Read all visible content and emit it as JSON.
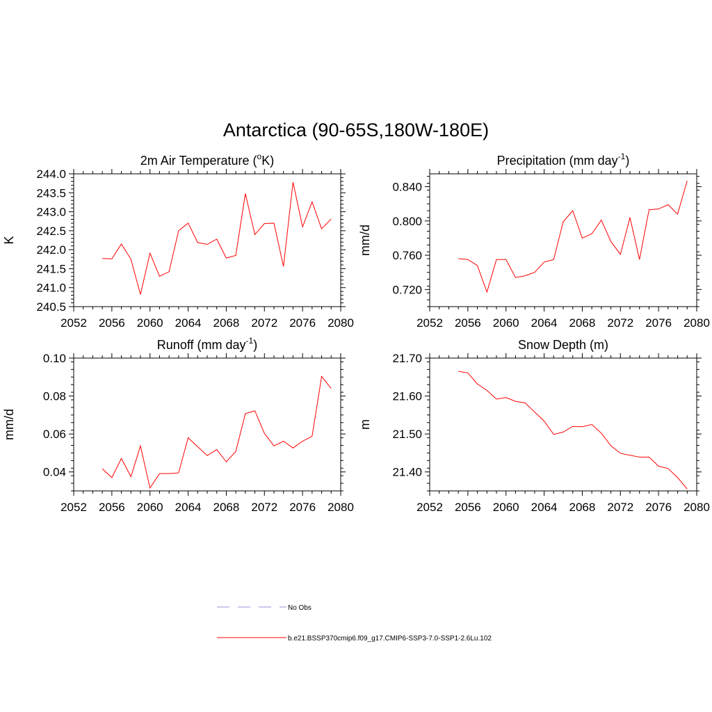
{
  "page_title": "Antarctica (90-65S,180W-180E)",
  "colors": {
    "model_line": "#ff0000",
    "obs_line": "#b8b8e8",
    "axis": "#000000"
  },
  "legend": {
    "obs_label": "No Obs",
    "model_label": "b.e21.BSSP370cmip6.f09_g17.CMIP6-SSP3-7.0-SSP1-2.6Lu.102"
  },
  "chart_data": [
    {
      "type": "line",
      "title": "2m Air Temperature (oK)",
      "title_pre": "2m Air Temperature (",
      "title_sup": "o",
      "title_post": "K)",
      "ylabel": "K",
      "xlim": [
        2052,
        2080
      ],
      "ylim": [
        240.5,
        244.0
      ],
      "x_ticks": [
        2052,
        2056,
        2060,
        2064,
        2068,
        2072,
        2076,
        2080
      ],
      "x_tick_labels": [
        "2052",
        "2056",
        "2060",
        "2064",
        "2068",
        "2072",
        "2076",
        "2080"
      ],
      "y_ticks": [
        240.5,
        241.0,
        241.5,
        242.0,
        242.5,
        243.0,
        243.5,
        244.0
      ],
      "y_tick_labels": [
        "240.5",
        "241.0",
        "241.5",
        "242.0",
        "242.5",
        "243.0",
        "243.5",
        "244.0"
      ],
      "y_minor_step": 0.1,
      "x": [
        2055,
        2056,
        2057,
        2058,
        2059,
        2060,
        2061,
        2062,
        2063,
        2064,
        2065,
        2066,
        2067,
        2068,
        2069,
        2070,
        2071,
        2072,
        2073,
        2074,
        2075,
        2076,
        2077,
        2078,
        2079
      ],
      "series": [
        {
          "values": [
            241.77,
            241.76,
            242.15,
            241.75,
            240.82,
            241.91,
            241.3,
            241.42,
            242.5,
            242.7,
            242.19,
            242.14,
            242.28,
            241.78,
            241.85,
            243.48,
            242.4,
            242.69,
            242.7,
            241.56,
            243.78,
            242.6,
            243.26,
            242.55,
            242.81
          ]
        }
      ]
    },
    {
      "type": "line",
      "title": "Precipitation (mm day-1)",
      "title_pre": "Precipitation (mm day",
      "title_sup": "-1",
      "title_post": ")",
      "ylabel": "mm/d",
      "xlim": [
        2052,
        2080
      ],
      "ylim": [
        0.7,
        0.855
      ],
      "x_ticks": [
        2052,
        2056,
        2060,
        2064,
        2068,
        2072,
        2076,
        2080
      ],
      "x_tick_labels": [
        "2052",
        "2056",
        "2060",
        "2064",
        "2068",
        "2072",
        "2076",
        "2080"
      ],
      "y_ticks": [
        0.72,
        0.76,
        0.8,
        0.84
      ],
      "y_tick_labels": [
        "0.720",
        "0.760",
        "0.800",
        "0.840"
      ],
      "y_minor_step": 0.008,
      "x": [
        2055,
        2056,
        2057,
        2058,
        2059,
        2060,
        2061,
        2062,
        2063,
        2064,
        2065,
        2066,
        2067,
        2068,
        2069,
        2070,
        2071,
        2072,
        2073,
        2074,
        2075,
        2076,
        2077,
        2078,
        2079
      ],
      "series": [
        {
          "values": [
            0.756,
            0.755,
            0.748,
            0.717,
            0.755,
            0.755,
            0.734,
            0.736,
            0.74,
            0.752,
            0.755,
            0.799,
            0.812,
            0.78,
            0.785,
            0.801,
            0.776,
            0.761,
            0.804,
            0.755,
            0.813,
            0.814,
            0.819,
            0.808,
            0.847
          ]
        }
      ]
    },
    {
      "type": "line",
      "title": "Runoff (mm day-1)",
      "title_pre": "Runoff (mm day",
      "title_sup": "-1",
      "title_post": ")",
      "ylabel": "mm/d",
      "xlim": [
        2052,
        2080
      ],
      "ylim": [
        0.03,
        0.1
      ],
      "x_ticks": [
        2052,
        2056,
        2060,
        2064,
        2068,
        2072,
        2076,
        2080
      ],
      "x_tick_labels": [
        "2052",
        "2056",
        "2060",
        "2064",
        "2068",
        "2072",
        "2076",
        "2080"
      ],
      "y_ticks": [
        0.04,
        0.06,
        0.08,
        0.1
      ],
      "y_tick_labels": [
        "0.04",
        "0.06",
        "0.08",
        "0.10"
      ],
      "y_minor_step": 0.004,
      "x": [
        2055,
        2056,
        2057,
        2058,
        2059,
        2060,
        2061,
        2062,
        2063,
        2064,
        2065,
        2066,
        2067,
        2068,
        2069,
        2070,
        2071,
        2072,
        2073,
        2074,
        2075,
        2076,
        2077,
        2078,
        2079
      ],
      "series": [
        {
          "values": [
            0.0417,
            0.037,
            0.0471,
            0.0375,
            0.0537,
            0.0315,
            0.0391,
            0.0391,
            0.0395,
            0.058,
            0.0533,
            0.0486,
            0.0518,
            0.0453,
            0.0508,
            0.0707,
            0.0722,
            0.0603,
            0.0537,
            0.0562,
            0.0526,
            0.0562,
            0.0588,
            0.0903,
            0.084
          ]
        }
      ]
    },
    {
      "type": "line",
      "title": "Snow Depth (m)",
      "title_pre": "Snow Depth (m)",
      "title_sup": "",
      "title_post": "",
      "ylabel": "m",
      "xlim": [
        2052,
        2080
      ],
      "ylim": [
        21.35,
        21.7
      ],
      "x_ticks": [
        2052,
        2056,
        2060,
        2064,
        2068,
        2072,
        2076,
        2080
      ],
      "x_tick_labels": [
        "2052",
        "2056",
        "2060",
        "2064",
        "2068",
        "2072",
        "2076",
        "2080"
      ],
      "y_ticks": [
        21.4,
        21.5,
        21.6,
        21.7
      ],
      "y_tick_labels": [
        "21.40",
        "21.50",
        "21.60",
        "21.70"
      ],
      "y_minor_step": 0.02,
      "x": [
        2055,
        2056,
        2057,
        2058,
        2059,
        2060,
        2061,
        2062,
        2063,
        2064,
        2065,
        2066,
        2067,
        2068,
        2069,
        2070,
        2071,
        2072,
        2073,
        2074,
        2075,
        2076,
        2077,
        2078,
        2079
      ],
      "series": [
        {
          "values": [
            21.665,
            21.661,
            21.632,
            21.615,
            21.592,
            21.596,
            21.586,
            21.582,
            21.558,
            21.534,
            21.499,
            21.505,
            21.52,
            21.519,
            21.525,
            21.502,
            21.469,
            21.449,
            21.444,
            21.439,
            21.439,
            21.415,
            21.409,
            21.385,
            21.355
          ]
        }
      ]
    }
  ]
}
